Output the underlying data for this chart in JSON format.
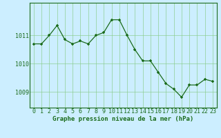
{
  "x": [
    0,
    1,
    2,
    3,
    4,
    5,
    6,
    7,
    8,
    9,
    10,
    11,
    12,
    13,
    14,
    15,
    16,
    17,
    18,
    19,
    20,
    21,
    22,
    23
  ],
  "y": [
    1010.7,
    1010.7,
    1011.0,
    1011.35,
    1010.85,
    1010.7,
    1010.8,
    1010.7,
    1011.0,
    1011.1,
    1011.55,
    1011.55,
    1011.0,
    1010.5,
    1010.1,
    1010.1,
    1009.7,
    1009.3,
    1009.1,
    1008.82,
    1009.25,
    1009.25,
    1009.45,
    1009.38
  ],
  "line_color": "#1a6b1a",
  "marker_color": "#1a6b1a",
  "bg_color": "#cceeff",
  "grid_color": "#88cc88",
  "xlabel": "Graphe pression niveau de la mer (hPa)",
  "xlim": [
    -0.5,
    23.5
  ],
  "ylim": [
    1008.45,
    1012.15
  ],
  "yticks": [
    1009,
    1010,
    1011
  ],
  "xticks": [
    0,
    1,
    2,
    3,
    4,
    5,
    6,
    7,
    8,
    9,
    10,
    11,
    12,
    13,
    14,
    15,
    16,
    17,
    18,
    19,
    20,
    21,
    22,
    23
  ],
  "xlabel_fontsize": 6.5,
  "tick_fontsize": 6.0
}
